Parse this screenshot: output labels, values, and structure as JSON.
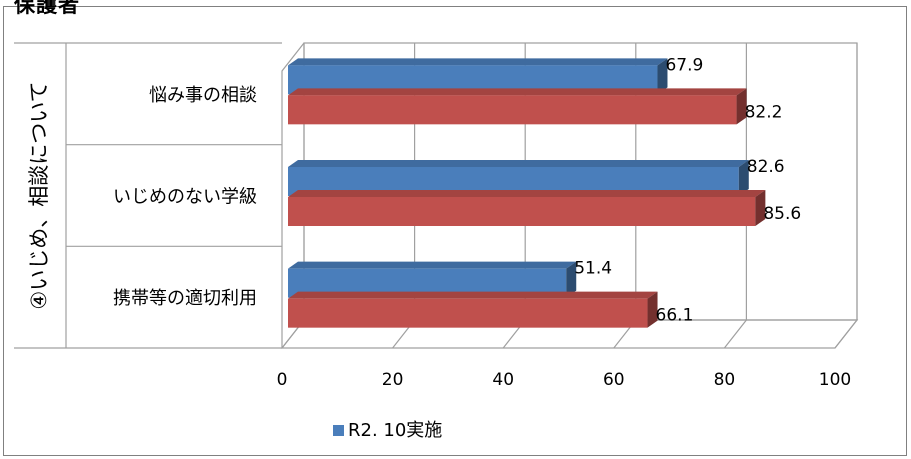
{
  "heading": "保護者",
  "chart_data": {
    "type": "bar",
    "orientation": "horizontal",
    "group_label": "④いじめ、相談について",
    "categories": [
      "悩み事の相談",
      "いじめのない学級",
      "携帯等の適切利用"
    ],
    "series": [
      {
        "name": "R2. 10実施",
        "values": [
          67.9,
          82.6,
          51.4
        ],
        "color": "#4a7ebb"
      },
      {
        "values": [
          82.2,
          85.6,
          66.1
        ],
        "color": "#c0504d"
      }
    ],
    "data_labels": [
      [
        "67.9",
        "82.6",
        "51.4"
      ],
      [
        "82.2",
        "85.6",
        "66.1"
      ]
    ],
    "xlim": [
      0,
      100
    ],
    "xticks": [
      "0",
      "20",
      "40",
      "60",
      "80",
      "100"
    ],
    "grid": true,
    "legend": "bottom-left"
  }
}
